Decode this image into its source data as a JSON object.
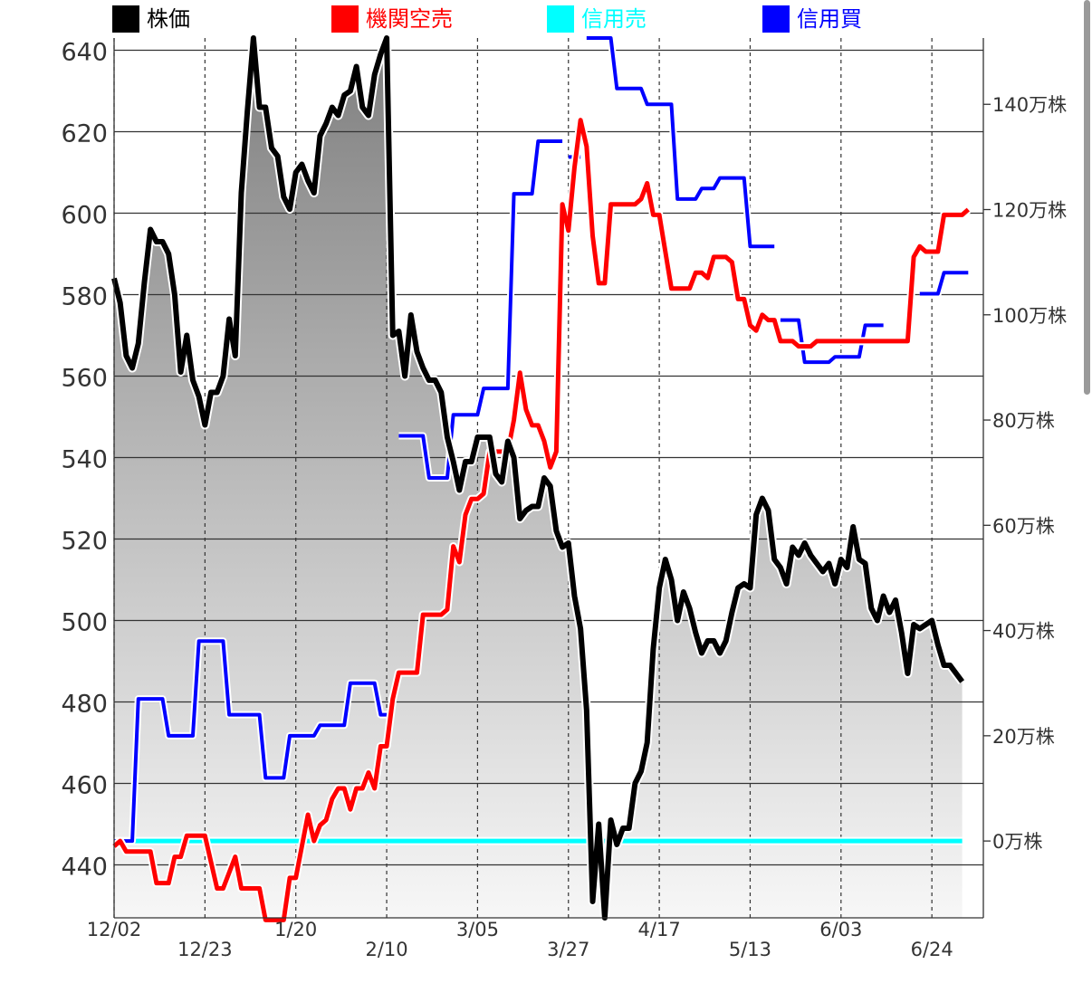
{
  "chart_data": {
    "type": "line",
    "legend": [
      {
        "name": "株価",
        "color": "#000000"
      },
      {
        "name": "機関空売",
        "color": "#ff0000"
      },
      {
        "name": "信用売",
        "color": "#00ffff"
      },
      {
        "name": "信用買",
        "color": "#0000ff"
      }
    ],
    "left_axis": {
      "ticks": [
        "640",
        "620",
        "600",
        "580",
        "560",
        "540",
        "520",
        "500",
        "480",
        "460",
        "440"
      ],
      "ylim": [
        427,
        643
      ]
    },
    "right_axis": {
      "ticks": [
        "140万株",
        "120万株",
        "100万株",
        "80万株",
        "60万株",
        "40万株",
        "20万株",
        "0万株"
      ],
      "ylim": [
        -14.6,
        152.6
      ]
    },
    "x_ticks": [
      "12/02",
      "12/23",
      "1/20",
      "2/10",
      "3/05",
      "3/27",
      "4/17",
      "5/13",
      "6/03",
      "6/24"
    ],
    "x_range": [
      0,
      142
    ],
    "x_tick_positions": [
      0,
      15,
      30,
      45,
      60,
      75,
      90,
      105,
      120,
      135
    ],
    "series": [
      {
        "name": "株価",
        "color": "#000000",
        "axis": "left",
        "filled": true,
        "points": [
          [
            0,
            584
          ],
          [
            1,
            578
          ],
          [
            2,
            565
          ],
          [
            3,
            562
          ],
          [
            4,
            568
          ],
          [
            5,
            583
          ],
          [
            6,
            596
          ],
          [
            7,
            593
          ],
          [
            8,
            593
          ],
          [
            9,
            590
          ],
          [
            10,
            580
          ],
          [
            11,
            561
          ],
          [
            12,
            570
          ],
          [
            13,
            559
          ],
          [
            14,
            555
          ],
          [
            15,
            548
          ],
          [
            16,
            556
          ],
          [
            17,
            556
          ],
          [
            18,
            560
          ],
          [
            19,
            574
          ],
          [
            20,
            565
          ],
          [
            21,
            605
          ],
          [
            22,
            625
          ],
          [
            23,
            643
          ],
          [
            24,
            626
          ],
          [
            25,
            626
          ],
          [
            26,
            616
          ],
          [
            27,
            614
          ],
          [
            28,
            604
          ],
          [
            29,
            601
          ],
          [
            30,
            610
          ],
          [
            31,
            612
          ],
          [
            32,
            608
          ],
          [
            33,
            605
          ],
          [
            34,
            619
          ],
          [
            35,
            622
          ],
          [
            36,
            626
          ],
          [
            37,
            624
          ],
          [
            38,
            629
          ],
          [
            39,
            630
          ],
          [
            40,
            636
          ],
          [
            41,
            626
          ],
          [
            42,
            624
          ],
          [
            43,
            634
          ],
          [
            44,
            639
          ],
          [
            45,
            643
          ],
          [
            46,
            570
          ],
          [
            47,
            571
          ],
          [
            48,
            560
          ],
          [
            49,
            575
          ],
          [
            50,
            566
          ],
          [
            51,
            562
          ],
          [
            52,
            559
          ],
          [
            53,
            559
          ],
          [
            54,
            556
          ],
          [
            55,
            545
          ],
          [
            56,
            539
          ],
          [
            57,
            532
          ],
          [
            58,
            539
          ],
          [
            59,
            539
          ],
          [
            60,
            545
          ],
          [
            61,
            545
          ],
          [
            62,
            545
          ],
          [
            63,
            536
          ],
          [
            64,
            534
          ],
          [
            65,
            544
          ],
          [
            66,
            540
          ],
          [
            67,
            525
          ],
          [
            68,
            527
          ],
          [
            69,
            528
          ],
          [
            70,
            528
          ],
          [
            71,
            535
          ],
          [
            72,
            533
          ],
          [
            73,
            522
          ],
          [
            74,
            518
          ],
          [
            75,
            519
          ],
          [
            76,
            506
          ],
          [
            77,
            498
          ],
          [
            78,
            478
          ],
          [
            79,
            431
          ],
          [
            80,
            450
          ],
          [
            81,
            427
          ],
          [
            82,
            451
          ],
          [
            83,
            445
          ],
          [
            84,
            449
          ],
          [
            85,
            449
          ],
          [
            86,
            460
          ],
          [
            87,
            463
          ],
          [
            88,
            470
          ],
          [
            89,
            493
          ],
          [
            90,
            508
          ],
          [
            91,
            515
          ],
          [
            92,
            510
          ],
          [
            93,
            500
          ],
          [
            94,
            507
          ],
          [
            95,
            503
          ],
          [
            96,
            497
          ],
          [
            97,
            492
          ],
          [
            98,
            495
          ],
          [
            99,
            495
          ],
          [
            100,
            492
          ],
          [
            101,
            495
          ],
          [
            102,
            502
          ],
          [
            103,
            508
          ],
          [
            104,
            509
          ],
          [
            105,
            508
          ],
          [
            106,
            526
          ],
          [
            107,
            530
          ],
          [
            108,
            527
          ],
          [
            109,
            515
          ],
          [
            110,
            513
          ],
          [
            111,
            509
          ],
          [
            112,
            518
          ],
          [
            113,
            516
          ],
          [
            114,
            519
          ],
          [
            115,
            516
          ],
          [
            116,
            514
          ],
          [
            117,
            512
          ],
          [
            118,
            514
          ],
          [
            119,
            509
          ],
          [
            120,
            515
          ],
          [
            121,
            513
          ],
          [
            122,
            523
          ],
          [
            123,
            515
          ],
          [
            124,
            514
          ],
          [
            125,
            503
          ],
          [
            126,
            500
          ],
          [
            127,
            506
          ],
          [
            128,
            502
          ],
          [
            129,
            505
          ],
          [
            130,
            497
          ],
          [
            131,
            487
          ],
          [
            132,
            499
          ],
          [
            133,
            498
          ],
          [
            134,
            499
          ],
          [
            135,
            500
          ],
          [
            136,
            494
          ],
          [
            137,
            489
          ],
          [
            138,
            489
          ],
          [
            139,
            487
          ],
          [
            140,
            485
          ]
        ]
      },
      {
        "name": "信用売",
        "color": "#00ffff",
        "axis": "right",
        "points": [
          [
            0,
            0
          ],
          [
            140,
            0
          ]
        ]
      },
      {
        "name": "信用買",
        "color": "#0000ff",
        "axis": "right",
        "segments": [
          [
            [
              0,
              0
            ],
            [
              3,
              0
            ],
            [
              4,
              27
            ],
            [
              8,
              27
            ],
            [
              9,
              20
            ],
            [
              13,
              20
            ],
            [
              14,
              38
            ],
            [
              18,
              38
            ],
            [
              19,
              24
            ],
            [
              24,
              24
            ],
            [
              25,
              12
            ],
            [
              28,
              12
            ],
            [
              29,
              20
            ],
            [
              33,
              20
            ],
            [
              34,
              22
            ],
            [
              38,
              22
            ],
            [
              39,
              30
            ],
            [
              43,
              30
            ],
            [
              44,
              24
            ],
            [
              46,
              24
            ]
          ],
          [
            [
              47,
              77
            ],
            [
              51,
              77
            ],
            [
              52,
              69
            ],
            [
              55,
              69
            ],
            [
              56,
              81
            ],
            [
              60,
              81
            ],
            [
              61,
              86
            ],
            [
              65,
              86
            ],
            [
              66,
              123
            ],
            [
              69,
              123
            ],
            [
              70,
              133
            ],
            [
              74,
              133
            ]
          ],
          [
            [
              75,
              130
            ],
            [
              77,
              130
            ]
          ],
          [
            [
              78,
              152.6
            ],
            [
              82,
              152.6
            ],
            [
              83,
              143
            ],
            [
              87,
              143
            ],
            [
              88,
              140
            ],
            [
              92,
              140
            ],
            [
              93,
              122
            ],
            [
              96,
              122
            ],
            [
              97,
              124
            ],
            [
              99,
              124
            ],
            [
              100,
              126
            ],
            [
              104,
              126
            ],
            [
              105,
              113
            ],
            [
              109,
              113
            ]
          ],
          [
            [
              110,
              99
            ],
            [
              113,
              99
            ],
            [
              114,
              91
            ],
            [
              118,
              91
            ],
            [
              119,
              92
            ],
            [
              123,
              92
            ],
            [
              124,
              98
            ],
            [
              127,
              98
            ]
          ],
          [
            [
              133,
              104
            ],
            [
              136,
              104
            ],
            [
              137,
              108
            ],
            [
              141,
              108
            ]
          ]
        ]
      },
      {
        "name": "機関空売",
        "color": "#ff0000",
        "axis": "right",
        "points": [
          [
            0,
            -1
          ],
          [
            1,
            0
          ],
          [
            2,
            -2
          ],
          [
            6,
            -2
          ],
          [
            7,
            -8
          ],
          [
            9,
            -8
          ],
          [
            10,
            -3
          ],
          [
            11,
            -3
          ],
          [
            12,
            1
          ],
          [
            15,
            1
          ],
          [
            16,
            -4
          ],
          [
            17,
            -9
          ],
          [
            18,
            -9
          ],
          [
            19,
            -6
          ],
          [
            20,
            -3
          ],
          [
            21,
            -9
          ],
          [
            24,
            -9
          ],
          [
            25,
            -15
          ],
          [
            28,
            -15
          ],
          [
            29,
            -7
          ],
          [
            30,
            -7
          ],
          [
            31,
            -1
          ],
          [
            32,
            5
          ],
          [
            33,
            0
          ],
          [
            34,
            3
          ],
          [
            35,
            4
          ],
          [
            36,
            8
          ],
          [
            37,
            10
          ],
          [
            38,
            10
          ],
          [
            39,
            6
          ],
          [
            40,
            10
          ],
          [
            41,
            10
          ],
          [
            42,
            13
          ],
          [
            43,
            10
          ],
          [
            44,
            18
          ],
          [
            45,
            18
          ],
          [
            46,
            27
          ],
          [
            47,
            32
          ],
          [
            50,
            32
          ],
          [
            51,
            43
          ],
          [
            54,
            43
          ],
          [
            55,
            44
          ],
          [
            56,
            56
          ],
          [
            57,
            53
          ],
          [
            58,
            62
          ],
          [
            59,
            65
          ],
          [
            60,
            65
          ],
          [
            61,
            66
          ],
          [
            62,
            74
          ],
          [
            65,
            74
          ],
          [
            66,
            80
          ],
          [
            67,
            89
          ],
          [
            68,
            82
          ],
          [
            69,
            79
          ],
          [
            70,
            79
          ],
          [
            71,
            76
          ],
          [
            72,
            71
          ],
          [
            73,
            74
          ],
          [
            74,
            121
          ],
          [
            75,
            116
          ],
          [
            76,
            128
          ],
          [
            77,
            137
          ],
          [
            78,
            132
          ],
          [
            79,
            115
          ],
          [
            80,
            106
          ],
          [
            81,
            106
          ],
          [
            82,
            121
          ],
          [
            86,
            121
          ],
          [
            87,
            122
          ],
          [
            88,
            125
          ],
          [
            89,
            119
          ],
          [
            90,
            119
          ],
          [
            91,
            112
          ],
          [
            92,
            105
          ],
          [
            95,
            105
          ],
          [
            96,
            108
          ],
          [
            97,
            108
          ],
          [
            98,
            107
          ],
          [
            99,
            111
          ],
          [
            101,
            111
          ],
          [
            102,
            110
          ],
          [
            103,
            103
          ],
          [
            104,
            103
          ],
          [
            105,
            98
          ],
          [
            106,
            97
          ],
          [
            107,
            100
          ],
          [
            108,
            99
          ],
          [
            109,
            99
          ],
          [
            110,
            95
          ],
          [
            112,
            95
          ],
          [
            113,
            94
          ],
          [
            115,
            94
          ],
          [
            116,
            95
          ],
          [
            117,
            95
          ],
          [
            118,
            95
          ],
          [
            122,
            95
          ],
          [
            123,
            95
          ],
          [
            124,
            95
          ],
          [
            131,
            95
          ],
          [
            132,
            111
          ],
          [
            133,
            113
          ],
          [
            134,
            112
          ],
          [
            136,
            112
          ],
          [
            137,
            119
          ],
          [
            140,
            119
          ],
          [
            141,
            120
          ]
        ]
      }
    ]
  }
}
